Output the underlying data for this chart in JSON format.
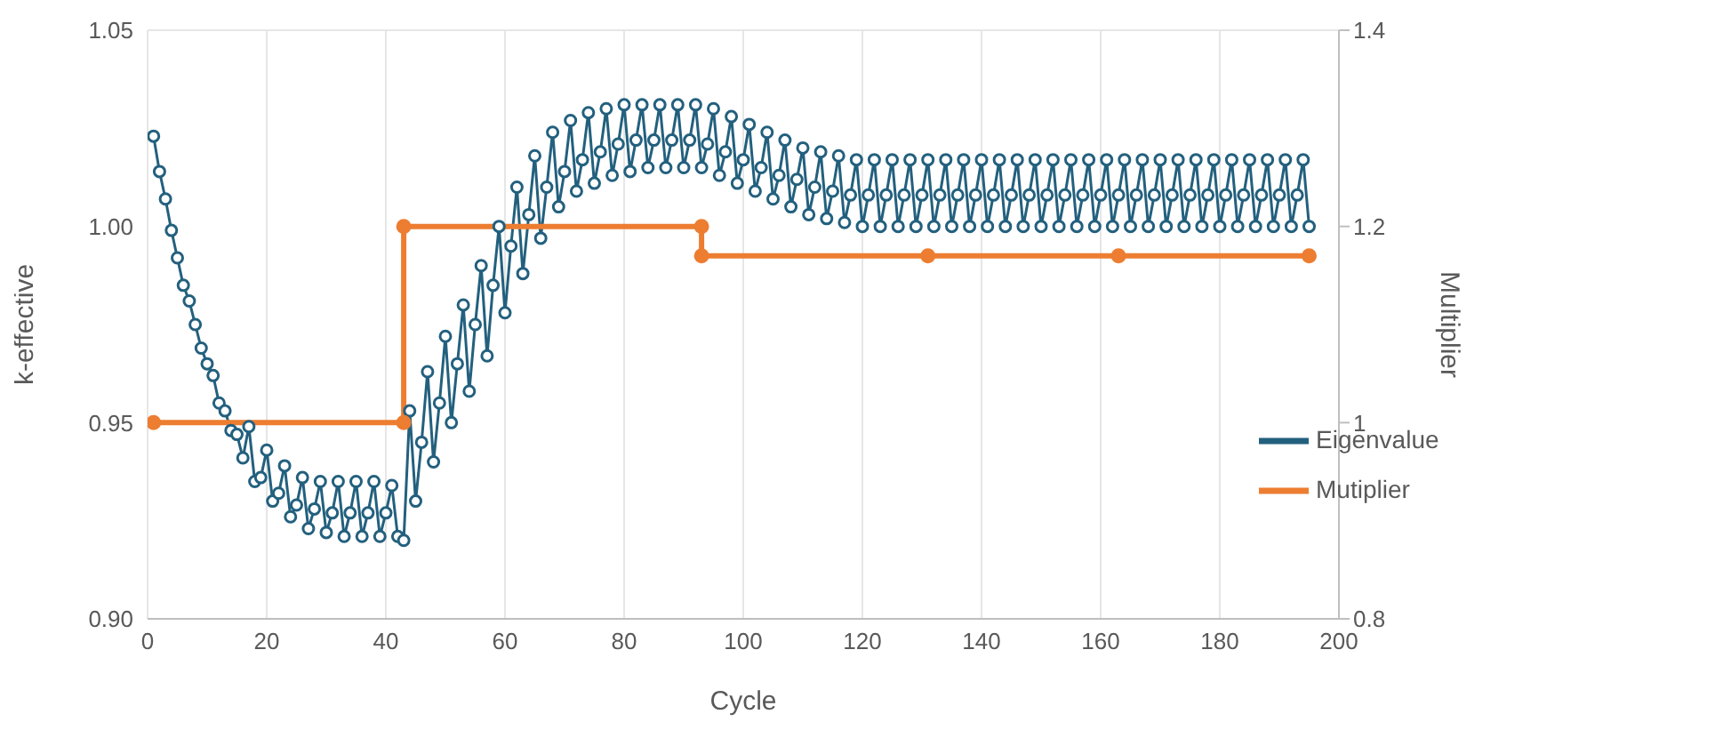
{
  "chart_data": {
    "type": "line",
    "xlabel": "Cycle",
    "ylabel": "k-effective",
    "y2label": "Multiplier",
    "x": [
      1,
      2,
      3,
      4,
      5,
      6,
      7,
      8,
      9,
      10,
      11,
      12,
      13,
      14,
      15,
      16,
      17,
      18,
      19,
      20,
      21,
      22,
      23,
      24,
      25,
      26,
      27,
      28,
      29,
      30,
      31,
      32,
      33,
      34,
      35,
      36,
      37,
      38,
      39,
      40,
      41,
      42,
      43,
      44,
      45,
      46,
      47,
      48,
      49,
      50,
      51,
      52,
      53,
      54,
      55,
      56,
      57,
      58,
      59,
      60,
      61,
      62,
      63,
      64,
      65,
      66,
      67,
      68,
      69,
      70,
      71,
      72,
      73,
      74,
      75,
      76,
      77,
      78,
      79,
      80,
      81,
      82,
      83,
      84,
      85,
      86,
      87,
      88,
      89,
      90,
      91,
      92,
      93,
      94,
      95,
      96,
      97,
      98,
      99,
      100,
      101,
      102,
      103,
      104,
      105,
      106,
      107,
      108,
      109,
      110,
      111,
      112,
      113,
      114,
      115,
      116,
      117,
      118,
      119,
      120,
      121,
      122,
      123,
      124,
      125,
      126,
      127,
      128,
      129,
      130,
      131,
      132,
      133,
      134,
      135,
      136,
      137,
      138,
      139,
      140,
      141,
      142,
      143,
      144,
      145,
      146,
      147,
      148,
      149,
      150,
      151,
      152,
      153,
      154,
      155,
      156,
      157,
      158,
      159,
      160,
      161,
      162,
      163,
      164,
      165,
      166,
      167,
      168,
      169,
      170,
      171,
      172,
      173,
      174,
      175,
      176,
      177,
      178,
      179,
      180,
      181,
      182,
      183,
      184,
      185,
      186,
      187,
      188,
      189,
      190,
      191,
      192,
      193,
      194,
      195
    ],
    "series": [
      {
        "name": "Eigenvalue",
        "color": "#23607e",
        "values": [
          1.023,
          1.014,
          1.007,
          0.999,
          0.992,
          0.985,
          0.981,
          0.975,
          0.969,
          0.965,
          0.962,
          0.955,
          0.953,
          0.948,
          0.947,
          0.941,
          0.949,
          0.935,
          0.936,
          0.943,
          0.93,
          0.932,
          0.939,
          0.926,
          0.929,
          0.936,
          0.923,
          0.928,
          0.935,
          0.922,
          0.927,
          0.935,
          0.921,
          0.927,
          0.935,
          0.921,
          0.927,
          0.935,
          0.921,
          0.927,
          0.934,
          0.921,
          0.92,
          0.953,
          0.93,
          0.945,
          0.963,
          0.94,
          0.955,
          0.972,
          0.95,
          0.965,
          0.98,
          0.958,
          0.975,
          0.99,
          0.967,
          0.985,
          1.0,
          0.978,
          0.995,
          1.01,
          0.988,
          1.003,
          1.018,
          0.997,
          1.01,
          1.024,
          1.005,
          1.014,
          1.027,
          1.009,
          1.017,
          1.029,
          1.011,
          1.019,
          1.03,
          1.013,
          1.021,
          1.031,
          1.014,
          1.022,
          1.031,
          1.015,
          1.022,
          1.031,
          1.015,
          1.022,
          1.031,
          1.015,
          1.022,
          1.031,
          1.015,
          1.021,
          1.03,
          1.013,
          1.019,
          1.028,
          1.011,
          1.017,
          1.026,
          1.009,
          1.015,
          1.024,
          1.007,
          1.013,
          1.022,
          1.005,
          1.012,
          1.02,
          1.003,
          1.01,
          1.019,
          1.002,
          1.009,
          1.018,
          1.001,
          1.008,
          1.017,
          1.0,
          1.008,
          1.017,
          1.0,
          1.008,
          1.017,
          1.0,
          1.008,
          1.017,
          1.0,
          1.008,
          1.017,
          1.0,
          1.008,
          1.017,
          1.0,
          1.008,
          1.017,
          1.0,
          1.008,
          1.017,
          1.0,
          1.008,
          1.017,
          1.0,
          1.008,
          1.017,
          1.0,
          1.008,
          1.017,
          1.0,
          1.008,
          1.017,
          1.0,
          1.008,
          1.017,
          1.0,
          1.008,
          1.017,
          1.0,
          1.008,
          1.017,
          1.0,
          1.008,
          1.017,
          1.0,
          1.008,
          1.017,
          1.0,
          1.008,
          1.017,
          1.0,
          1.008,
          1.017,
          1.0,
          1.008,
          1.017,
          1.0,
          1.008,
          1.017,
          1.0,
          1.008,
          1.017,
          1.0,
          1.008,
          1.017,
          1.0,
          1.008,
          1.017,
          1.0,
          1.008,
          1.017,
          1.0,
          1.008,
          1.017,
          1.0
        ]
      },
      {
        "name": "Mutiplier",
        "color": "#ed7d31",
        "axis": "y2",
        "x": [
          1,
          43,
          43,
          93,
          93,
          131,
          163,
          195
        ],
        "values": [
          1,
          1,
          1.2,
          1.2,
          1.17,
          1.17,
          1.17,
          1.17
        ]
      }
    ],
    "xlim": [
      0,
      200
    ],
    "xticks": [
      0,
      20,
      40,
      60,
      80,
      100,
      120,
      140,
      160,
      180,
      200
    ],
    "ylim": [
      0.9,
      1.05
    ],
    "yticks": [
      {
        "value": 0.9,
        "label": "0.90"
      },
      {
        "value": 0.95,
        "label": "0.95"
      },
      {
        "value": 1,
        "label": "1.00"
      },
      {
        "value": 1.05,
        "label": "1.05"
      }
    ],
    "y2lim": [
      0.8,
      1.4
    ],
    "y2ticks": [
      0.8,
      1,
      1.2,
      1.4
    ],
    "grid": true,
    "legend": "right",
    "marker": "circle",
    "line_style": "solid"
  }
}
